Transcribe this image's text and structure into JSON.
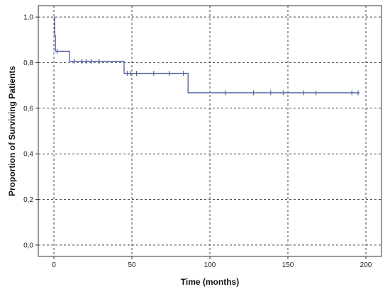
{
  "chart_data": {
    "type": "line",
    "title": "",
    "xlabel": "Time (months)",
    "ylabel": "Proportion of Surviving Patients",
    "xlim": [
      -10,
      210
    ],
    "ylim": [
      -0.05,
      1.05
    ],
    "x_ticks": [
      0,
      50,
      100,
      150,
      200
    ],
    "y_ticks": [
      0.0,
      0.2,
      0.4,
      0.6,
      0.8,
      1.0
    ],
    "x_tick_labels": [
      "0",
      "50",
      "100",
      "150",
      "200"
    ],
    "y_tick_labels": [
      "0,0",
      "0,2",
      "0,4",
      "0,6",
      "0,8",
      "1,0"
    ],
    "grid": true,
    "grid_style": "dashed",
    "line_color": "#4a5f9e",
    "series": [
      {
        "style": "step",
        "points": [
          {
            "x": 0,
            "y": 1.0
          },
          {
            "x": 0.5,
            "y": 0.92
          },
          {
            "x": 1,
            "y": 0.85
          },
          {
            "x": 10,
            "y": 0.806
          },
          {
            "x": 45,
            "y": 0.753
          },
          {
            "x": 86,
            "y": 0.668
          },
          {
            "x": 196,
            "y": 0.668
          }
        ],
        "censored": [
          {
            "x": 2,
            "y": 0.85
          },
          {
            "x": 13,
            "y": 0.806
          },
          {
            "x": 18,
            "y": 0.806
          },
          {
            "x": 21,
            "y": 0.806
          },
          {
            "x": 24,
            "y": 0.806
          },
          {
            "x": 29,
            "y": 0.806
          },
          {
            "x": 47,
            "y": 0.753
          },
          {
            "x": 49,
            "y": 0.753
          },
          {
            "x": 53,
            "y": 0.753
          },
          {
            "x": 64,
            "y": 0.753
          },
          {
            "x": 74,
            "y": 0.753
          },
          {
            "x": 83,
            "y": 0.753
          },
          {
            "x": 110,
            "y": 0.668
          },
          {
            "x": 128,
            "y": 0.668
          },
          {
            "x": 139,
            "y": 0.668
          },
          {
            "x": 147,
            "y": 0.668
          },
          {
            "x": 160,
            "y": 0.668
          },
          {
            "x": 168,
            "y": 0.668
          },
          {
            "x": 191,
            "y": 0.668
          },
          {
            "x": 195,
            "y": 0.668
          }
        ]
      }
    ]
  }
}
